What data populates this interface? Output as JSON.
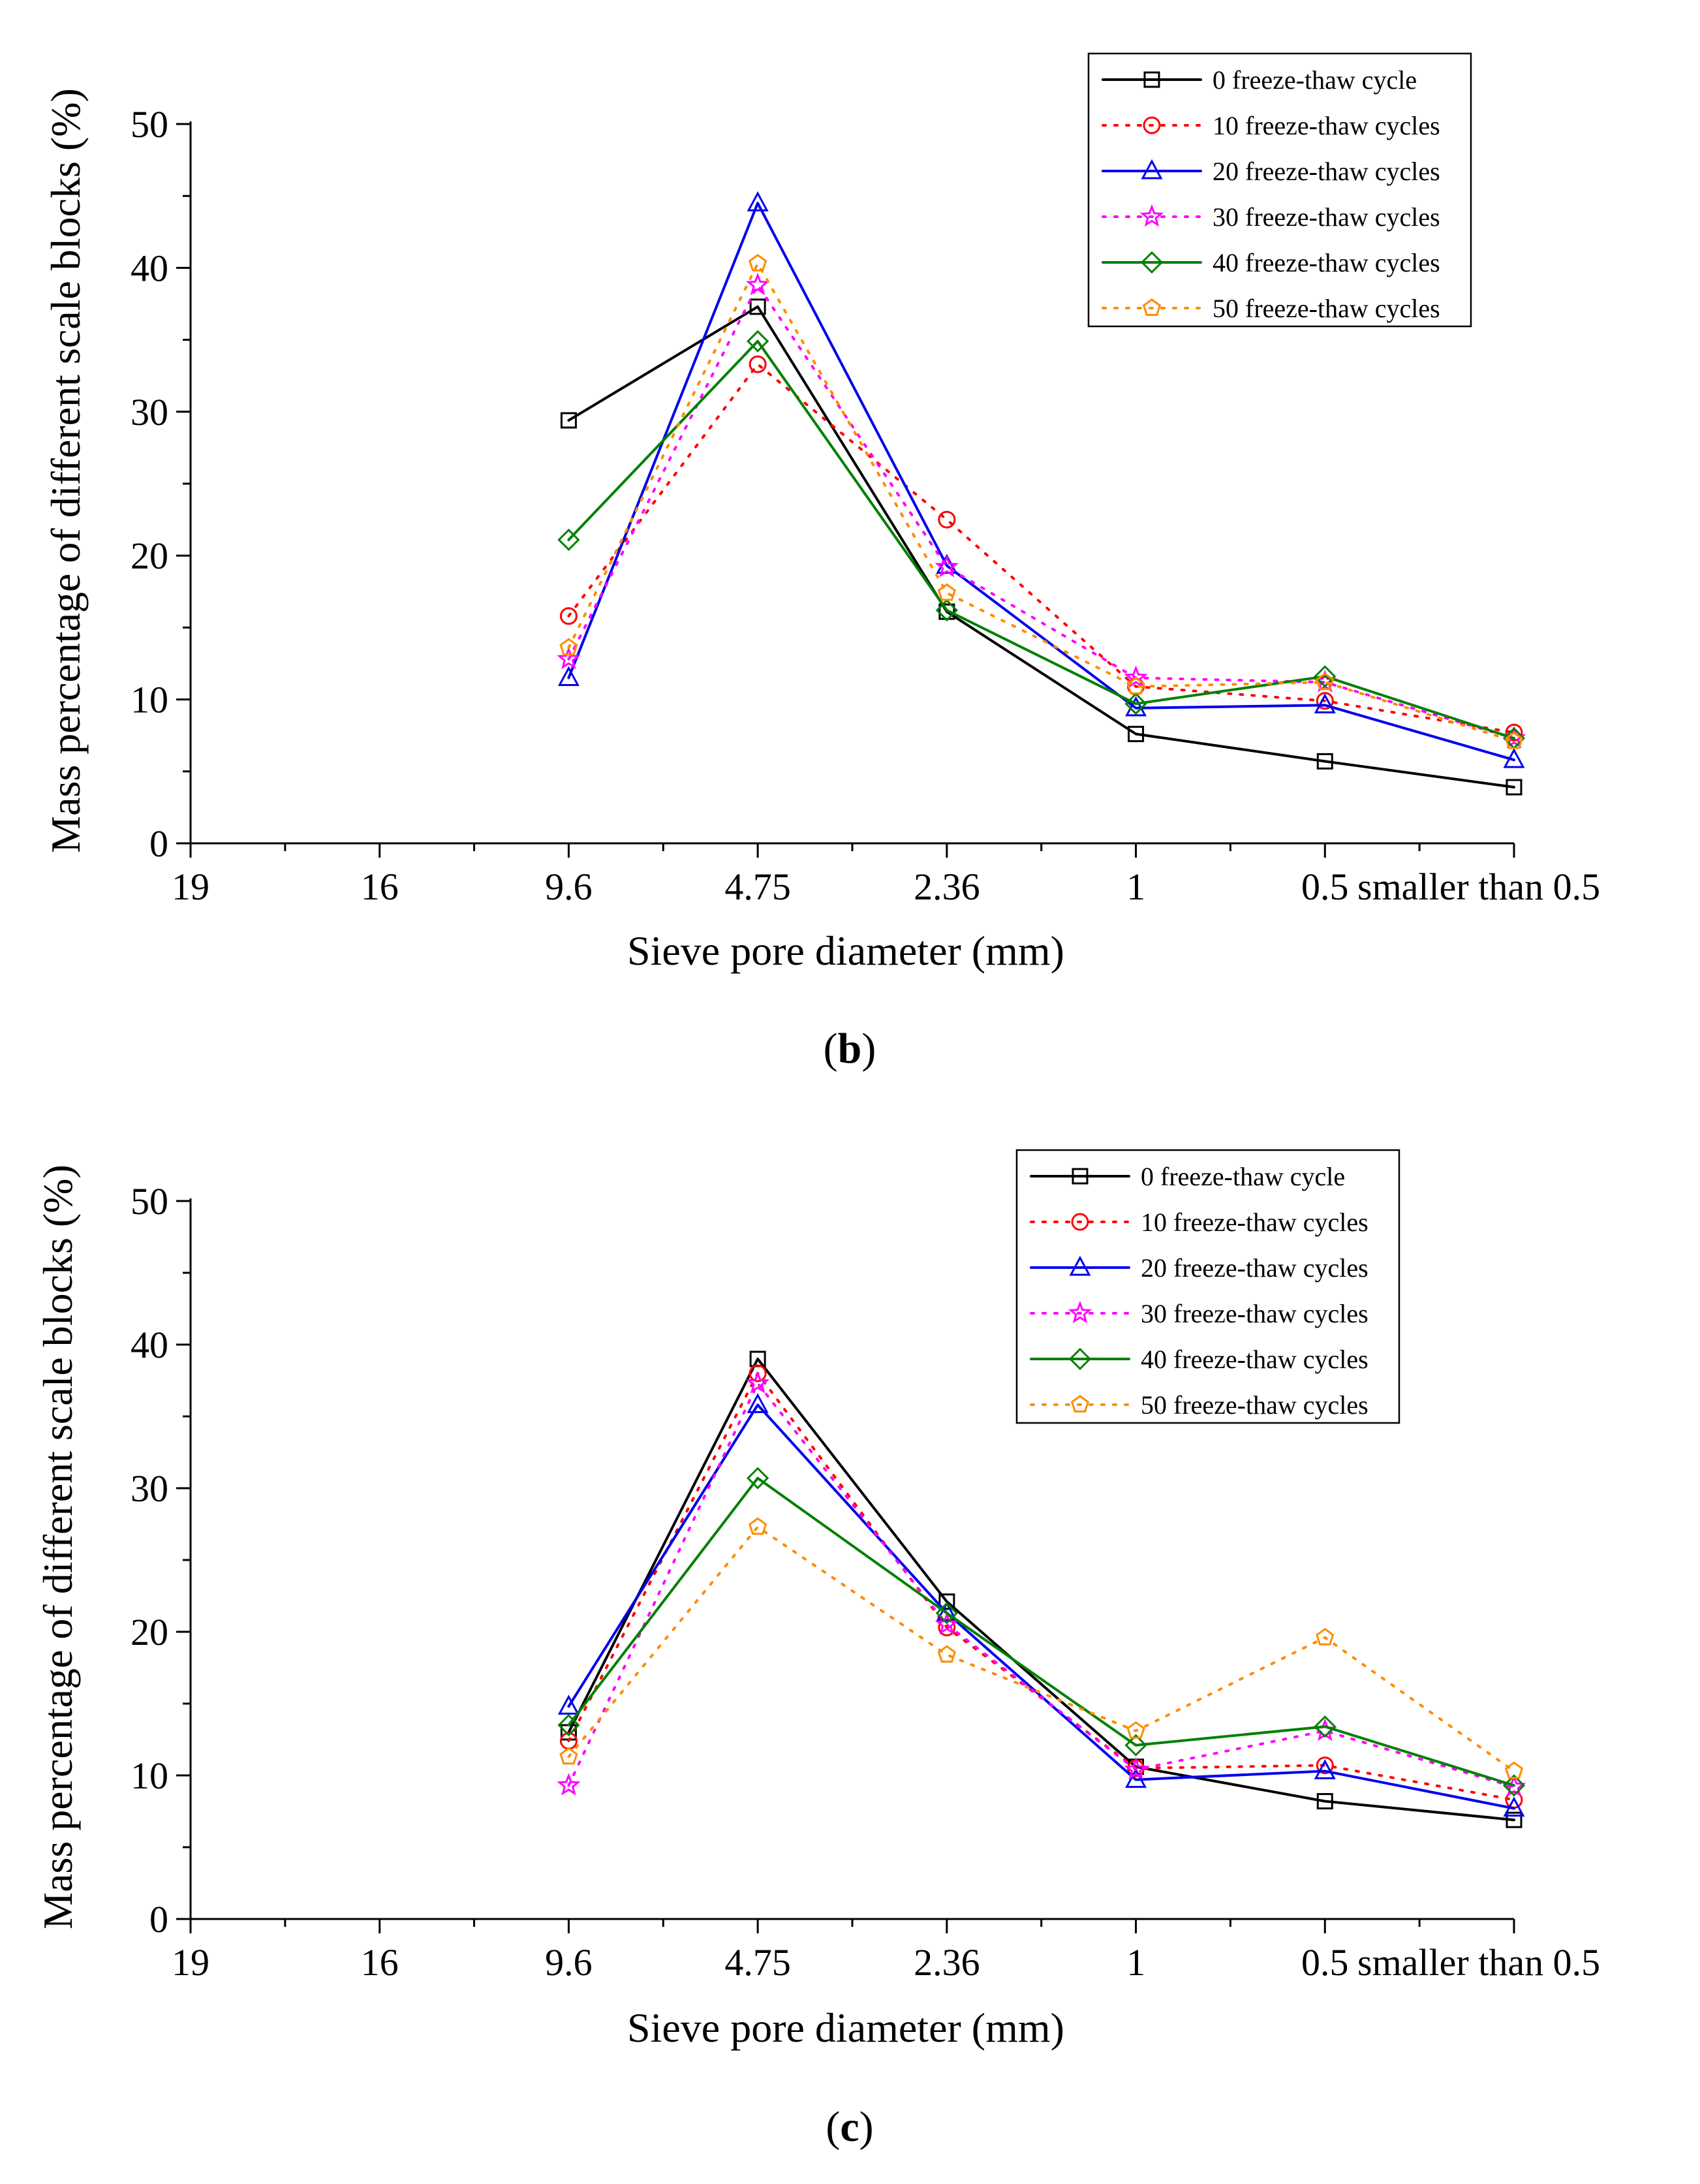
{
  "chart_data": [
    {
      "type": "line",
      "panel_label": "b",
      "xlabel": "Sieve pore diameter (mm)",
      "ylabel": "Mass percentage of different scale blocks (%)",
      "ylim": [
        0,
        50
      ],
      "yticks": [
        0,
        10,
        20,
        30,
        40,
        50
      ],
      "categories": [
        "19",
        "16",
        "9.6",
        "4.75",
        "2.36",
        "1",
        "0.5",
        "smaller than 0.5"
      ],
      "legend_position": "top-right",
      "series": [
        {
          "name": "0 freeze-thaw cycle",
          "color": "#000000",
          "dashed": false,
          "marker": "square",
          "values": [
            null,
            null,
            29.4,
            37.3,
            16.1,
            7.6,
            5.7,
            3.9
          ]
        },
        {
          "name": "10 freeze-thaw cycles",
          "color": "#ff0000",
          "dashed": true,
          "marker": "circle",
          "values": [
            null,
            null,
            15.8,
            33.3,
            22.5,
            10.9,
            9.9,
            7.7
          ]
        },
        {
          "name": "20 freeze-thaw cycles",
          "color": "#0000ee",
          "dashed": false,
          "marker": "triangle",
          "values": [
            null,
            null,
            11.5,
            44.5,
            19.3,
            9.4,
            9.6,
            5.8
          ]
        },
        {
          "name": "30 freeze-thaw cycles",
          "color": "#ff00ff",
          "dashed": true,
          "marker": "star",
          "values": [
            null,
            null,
            12.8,
            38.8,
            19.2,
            11.5,
            11.2,
            7.3
          ]
        },
        {
          "name": "40 freeze-thaw cycles",
          "color": "#008000",
          "dashed": false,
          "marker": "diamond",
          "values": [
            null,
            null,
            21.1,
            34.9,
            16.2,
            9.7,
            11.6,
            7.3
          ]
        },
        {
          "name": "50 freeze-thaw cycles",
          "color": "#ff8c00",
          "dashed": true,
          "marker": "pentagon",
          "values": [
            null,
            null,
            13.6,
            40.3,
            17.4,
            10.9,
            11.2,
            7.1
          ]
        }
      ]
    },
    {
      "type": "line",
      "panel_label": "c",
      "xlabel": "Sieve pore diameter (mm)",
      "ylabel": "Mass percentage of different scale blocks (%)",
      "ylim": [
        0,
        50
      ],
      "yticks": [
        0,
        10,
        20,
        30,
        40,
        50
      ],
      "categories": [
        "19",
        "16",
        "9.6",
        "4.75",
        "2.36",
        "1",
        "0.5",
        "smaller than 0.5"
      ],
      "legend_position": "top-right",
      "series": [
        {
          "name": "0 freeze-thaw cycle",
          "color": "#000000",
          "dashed": false,
          "marker": "square",
          "values": [
            null,
            null,
            13.0,
            39.0,
            22.1,
            10.6,
            8.2,
            6.9
          ]
        },
        {
          "name": "10 freeze-thaw cycles",
          "color": "#ff0000",
          "dashed": true,
          "marker": "circle",
          "values": [
            null,
            null,
            12.4,
            38.0,
            20.3,
            10.5,
            10.7,
            8.3
          ]
        },
        {
          "name": "20 freeze-thaw cycles",
          "color": "#0000ee",
          "dashed": false,
          "marker": "triangle",
          "values": [
            null,
            null,
            14.8,
            35.8,
            21.3,
            9.7,
            10.3,
            7.7
          ]
        },
        {
          "name": "30 freeze-thaw cycles",
          "color": "#ff00ff",
          "dashed": true,
          "marker": "star",
          "values": [
            null,
            null,
            9.3,
            37.3,
            20.5,
            10.4,
            13.1,
            9.2
          ]
        },
        {
          "name": "40 freeze-thaw cycles",
          "color": "#008000",
          "dashed": false,
          "marker": "diamond",
          "values": [
            null,
            null,
            13.5,
            30.7,
            21.3,
            12.1,
            13.4,
            9.3
          ]
        },
        {
          "name": "50 freeze-thaw cycles",
          "color": "#ff8c00",
          "dashed": true,
          "marker": "pentagon",
          "values": [
            null,
            null,
            11.3,
            27.3,
            18.4,
            13.1,
            19.6,
            10.3
          ]
        }
      ]
    }
  ]
}
